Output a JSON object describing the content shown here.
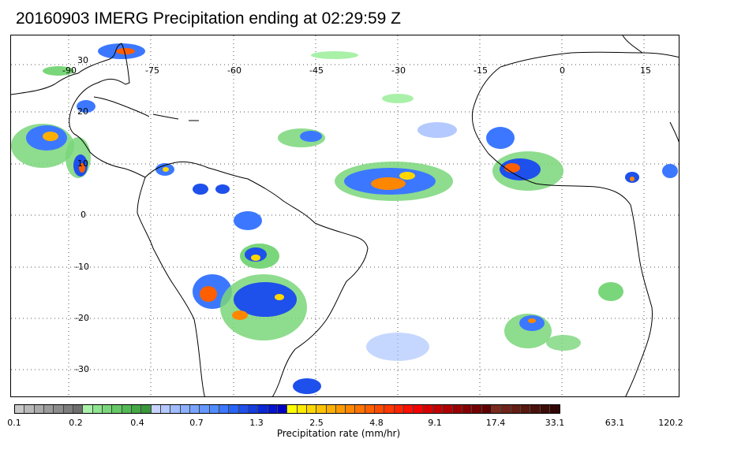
{
  "title": "20160903 IMERG Precipitation ending at 02:29:59 Z",
  "map": {
    "lon_labels": [
      "-90",
      "-75",
      "-60",
      "-45",
      "-30",
      "-15",
      "0",
      "15"
    ],
    "lat_labels": [
      "30",
      "20",
      "10",
      "0",
      "-10",
      "-20",
      "-30"
    ],
    "land_outline_color": "#000000",
    "grid_color": "#555555"
  },
  "colorbar": {
    "label": "Precipitation rate (mm/hr)",
    "tick_labels": [
      "0.1",
      "0.2",
      "0.4",
      "0.7",
      "1.3",
      "2.5",
      "4.8",
      "9.1",
      "17.4",
      "33.1",
      "63.1",
      "120.2"
    ],
    "colors": [
      "#c8c8c8",
      "#b9b9b9",
      "#aaaaaa",
      "#9b9b9b",
      "#8c8c8c",
      "#7d7d7d",
      "#6e6e6e",
      "#a9f0a9",
      "#8fe48f",
      "#7ad67a",
      "#66c866",
      "#52ba52",
      "#45a845",
      "#3a963a",
      "#c8d4ff",
      "#b4c8ff",
      "#a0bcff",
      "#8cb0ff",
      "#78a4ff",
      "#6498ff",
      "#508cff",
      "#3c78ff",
      "#2864f5",
      "#1e50eb",
      "#143ce1",
      "#0a28d7",
      "#0514cd",
      "#0000c3",
      "#ffff00",
      "#ffeb00",
      "#ffd700",
      "#ffc300",
      "#ffaf00",
      "#ff9b00",
      "#ff8700",
      "#ff7300",
      "#ff5f00",
      "#ff4b00",
      "#ff3700",
      "#ff2300",
      "#ff0f00",
      "#f50000",
      "#d70000",
      "#c30000",
      "#af0000",
      "#9b0000",
      "#870000",
      "#730000",
      "#5f0000",
      "#7a2a1e",
      "#6e2418",
      "#621e14",
      "#56180f",
      "#4a120b",
      "#3e0c07",
      "#320603"
    ]
  }
}
